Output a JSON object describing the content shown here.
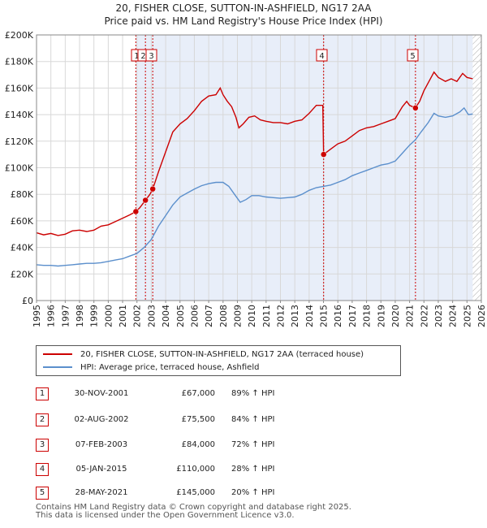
{
  "header": {
    "title": "20, FISHER CLOSE, SUTTON-IN-ASHFIELD, NG17 2AA",
    "subtitle": "Price paid vs. HM Land Registry's House Price Index (HPI)"
  },
  "colors": {
    "property": "#cc0000",
    "hpi": "#5b8fcc",
    "shade": "#e8eef9",
    "vline": "#cc0000"
  },
  "chart_data": {
    "type": "line",
    "title": "20, FISHER CLOSE, SUTTON-IN-ASHFIELD, NG17 2AA",
    "subtitle": "Price paid vs. HM Land Registry's House Price Index (HPI)",
    "xlim": [
      1995,
      2026
    ],
    "ylim": [
      0,
      200000
    ],
    "x_ticks": [
      "1995",
      "1996",
      "1997",
      "1998",
      "1999",
      "2000",
      "2001",
      "2002",
      "2003",
      "2004",
      "2005",
      "2006",
      "2007",
      "2008",
      "2009",
      "2010",
      "2011",
      "2012",
      "2013",
      "2014",
      "2015",
      "2016",
      "2017",
      "2018",
      "2019",
      "2020",
      "2021",
      "2022",
      "2023",
      "2024",
      "2025",
      "2026"
    ],
    "y_ticks": [
      {
        "v": 0,
        "label": "£0"
      },
      {
        "v": 20000,
        "label": "£20K"
      },
      {
        "v": 40000,
        "label": "£40K"
      },
      {
        "v": 60000,
        "label": "£60K"
      },
      {
        "v": 80000,
        "label": "£80K"
      },
      {
        "v": 100000,
        "label": "£100K"
      },
      {
        "v": 120000,
        "label": "£120K"
      },
      {
        "v": 140000,
        "label": "£140K"
      },
      {
        "v": 160000,
        "label": "£160K"
      },
      {
        "v": 180000,
        "label": "£180K"
      },
      {
        "v": 200000,
        "label": "£200K"
      }
    ],
    "shaded_range": [
      2001.92,
      2025.4
    ],
    "hatched_from": 2025.4,
    "series": [
      {
        "name": "20, FISHER CLOSE, SUTTON-IN-ASHFIELD, NG17 2AA (terraced house)",
        "color": "#cc0000",
        "points": [
          [
            1995.0,
            51000
          ],
          [
            1995.5,
            49500
          ],
          [
            1996.0,
            50500
          ],
          [
            1996.5,
            49000
          ],
          [
            1997.0,
            50000
          ],
          [
            1997.5,
            52500
          ],
          [
            1998.0,
            53000
          ],
          [
            1998.5,
            52000
          ],
          [
            1999.0,
            53000
          ],
          [
            1999.5,
            56000
          ],
          [
            2000.0,
            57000
          ],
          [
            2000.5,
            59500
          ],
          [
            2001.0,
            62000
          ],
          [
            2001.5,
            64500
          ],
          [
            2001.92,
            67000
          ],
          [
            2002.2,
            70000
          ],
          [
            2002.59,
            75500
          ],
          [
            2002.9,
            80000
          ],
          [
            2003.1,
            84000
          ],
          [
            2003.5,
            97000
          ],
          [
            2004.0,
            112000
          ],
          [
            2004.5,
            127000
          ],
          [
            2005.0,
            133000
          ],
          [
            2005.5,
            137000
          ],
          [
            2006.0,
            143000
          ],
          [
            2006.5,
            150000
          ],
          [
            2007.0,
            154000
          ],
          [
            2007.5,
            155000
          ],
          [
            2007.8,
            160000
          ],
          [
            2008.0,
            155000
          ],
          [
            2008.3,
            150000
          ],
          [
            2008.6,
            146000
          ],
          [
            2008.9,
            138000
          ],
          [
            2009.1,
            130000
          ],
          [
            2009.4,
            133000
          ],
          [
            2009.8,
            138000
          ],
          [
            2010.2,
            139000
          ],
          [
            2010.6,
            136000
          ],
          [
            2011.0,
            135000
          ],
          [
            2011.5,
            134000
          ],
          [
            2012.0,
            134000
          ],
          [
            2012.5,
            133000
          ],
          [
            2013.0,
            135000
          ],
          [
            2013.5,
            136000
          ],
          [
            2014.0,
            141000
          ],
          [
            2014.5,
            147000
          ],
          [
            2014.95,
            147000
          ],
          [
            2015.01,
            110000
          ],
          [
            2015.5,
            114000
          ],
          [
            2016.0,
            118000
          ],
          [
            2016.5,
            120000
          ],
          [
            2017.0,
            124000
          ],
          [
            2017.5,
            128000
          ],
          [
            2018.0,
            130000
          ],
          [
            2018.5,
            131000
          ],
          [
            2019.0,
            133000
          ],
          [
            2019.5,
            135000
          ],
          [
            2020.0,
            137000
          ],
          [
            2020.5,
            146000
          ],
          [
            2020.8,
            150000
          ],
          [
            2021.0,
            147000
          ],
          [
            2021.4,
            145000
          ],
          [
            2021.7,
            150000
          ],
          [
            2022.0,
            158000
          ],
          [
            2022.4,
            166000
          ],
          [
            2022.7,
            172000
          ],
          [
            2023.0,
            168000
          ],
          [
            2023.5,
            165000
          ],
          [
            2023.9,
            167000
          ],
          [
            2024.3,
            165000
          ],
          [
            2024.7,
            171000
          ],
          [
            2025.0,
            168000
          ],
          [
            2025.4,
            167000
          ]
        ]
      },
      {
        "name": "HPI: Average price, terraced house, Ashfield",
        "color": "#5b8fcc",
        "points": [
          [
            1995.0,
            27000
          ],
          [
            1995.5,
            26500
          ],
          [
            1996.0,
            26500
          ],
          [
            1996.5,
            26000
          ],
          [
            1997.0,
            26500
          ],
          [
            1997.5,
            27000
          ],
          [
            1998.0,
            27500
          ],
          [
            1998.5,
            28000
          ],
          [
            1999.0,
            28000
          ],
          [
            1999.5,
            28500
          ],
          [
            2000.0,
            29500
          ],
          [
            2000.5,
            30500
          ],
          [
            2001.0,
            31500
          ],
          [
            2001.5,
            33500
          ],
          [
            2002.0,
            35500
          ],
          [
            2002.5,
            40000
          ],
          [
            2003.0,
            46000
          ],
          [
            2003.5,
            56000
          ],
          [
            2004.0,
            64000
          ],
          [
            2004.5,
            72000
          ],
          [
            2005.0,
            78000
          ],
          [
            2005.5,
            81000
          ],
          [
            2006.0,
            84000
          ],
          [
            2006.5,
            86500
          ],
          [
            2007.0,
            88000
          ],
          [
            2007.5,
            89000
          ],
          [
            2008.0,
            89000
          ],
          [
            2008.4,
            86000
          ],
          [
            2008.8,
            80000
          ],
          [
            2009.2,
            74000
          ],
          [
            2009.6,
            76000
          ],
          [
            2010.0,
            79000
          ],
          [
            2010.5,
            79000
          ],
          [
            2011.0,
            78000
          ],
          [
            2011.5,
            77500
          ],
          [
            2012.0,
            77000
          ],
          [
            2012.5,
            77500
          ],
          [
            2013.0,
            78000
          ],
          [
            2013.5,
            80000
          ],
          [
            2014.0,
            83000
          ],
          [
            2014.5,
            85000
          ],
          [
            2015.0,
            86000
          ],
          [
            2015.5,
            87000
          ],
          [
            2016.0,
            89000
          ],
          [
            2016.5,
            91000
          ],
          [
            2017.0,
            94000
          ],
          [
            2017.5,
            96000
          ],
          [
            2018.0,
            98000
          ],
          [
            2018.5,
            100000
          ],
          [
            2019.0,
            102000
          ],
          [
            2019.5,
            103000
          ],
          [
            2020.0,
            105000
          ],
          [
            2020.5,
            111000
          ],
          [
            2021.0,
            117000
          ],
          [
            2021.4,
            121000
          ],
          [
            2021.8,
            127000
          ],
          [
            2022.3,
            134000
          ],
          [
            2022.7,
            141000
          ],
          [
            2023.0,
            139000
          ],
          [
            2023.5,
            138000
          ],
          [
            2024.0,
            139000
          ],
          [
            2024.5,
            142000
          ],
          [
            2024.8,
            145000
          ],
          [
            2025.1,
            140000
          ],
          [
            2025.4,
            140500
          ]
        ]
      }
    ],
    "sales": [
      {
        "num": "1",
        "x": 2001.92,
        "price": 67000
      },
      {
        "num": "2",
        "x": 2002.59,
        "price": 75500
      },
      {
        "num": "3",
        "x": 2003.1,
        "price": 84000
      },
      {
        "num": "4",
        "x": 2015.01,
        "price": 110000
      },
      {
        "num": "5",
        "x": 2021.41,
        "price": 145000
      }
    ]
  },
  "legend": {
    "property_label": "20, FISHER CLOSE, SUTTON-IN-ASHFIELD, NG17 2AA (terraced house)",
    "hpi_label": "HPI: Average price, terraced house, Ashfield"
  },
  "sales_table": [
    {
      "num": "1",
      "date": "30-NOV-2001",
      "price": "£67,000",
      "pct": "89% ↑ HPI"
    },
    {
      "num": "2",
      "date": "02-AUG-2002",
      "price": "£75,500",
      "pct": "84% ↑ HPI"
    },
    {
      "num": "3",
      "date": "07-FEB-2003",
      "price": "£84,000",
      "pct": "72% ↑ HPI"
    },
    {
      "num": "4",
      "date": "05-JAN-2015",
      "price": "£110,000",
      "pct": "28% ↑ HPI"
    },
    {
      "num": "5",
      "date": "28-MAY-2021",
      "price": "£145,000",
      "pct": "20% ↑ HPI"
    }
  ],
  "footer": {
    "line1": "Contains HM Land Registry data © Crown copyright and database right 2025.",
    "line2": "This data is licensed under the Open Government Licence v3.0."
  }
}
